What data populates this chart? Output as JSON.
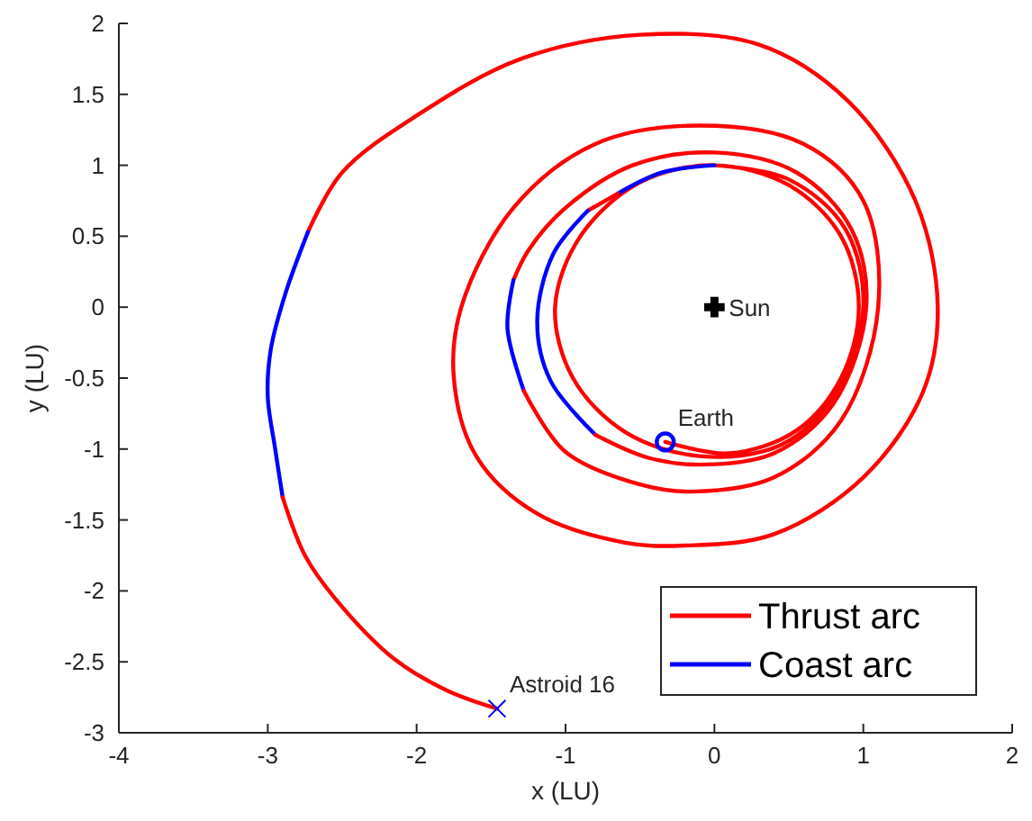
{
  "chart_data": {
    "type": "line",
    "xlabel": "x (LU)",
    "ylabel": "y (LU)",
    "xlim": [
      -4,
      2
    ],
    "xticks": [
      -4,
      -3,
      -2,
      -1,
      0,
      1,
      2
    ],
    "ylim": [
      -3,
      2
    ],
    "yticks": [
      -3,
      -2.5,
      -2,
      -1.5,
      -1,
      -0.5,
      0,
      0.5,
      1,
      1.5,
      2
    ],
    "grid": false,
    "legend": "bottom right",
    "line_style": "solid",
    "series": [
      {
        "name": "Thrust arc",
        "color": "#ff0000",
        "x": [
          -0.33,
          0.1,
          0.55,
          0.85,
          0.97,
          0.85,
          0.5,
          0.0,
          -0.5,
          -0.9,
          -1.07,
          -0.95,
          -0.6,
          -0.1,
          0.45,
          0.82,
          1.0,
          0.88,
          0.5,
          0.0
        ],
        "values": [
          -0.95,
          -1.03,
          -0.87,
          -0.5,
          0.0,
          0.5,
          0.86,
          1.0,
          0.88,
          0.5,
          0.0,
          -0.5,
          -0.88,
          -1.05,
          -0.97,
          -0.6,
          0.0,
          0.55,
          0.9,
          1.0
        ]
      },
      {
        "name": "Coast arc",
        "color": "#0000ff",
        "x": [
          0.0,
          -0.35,
          -0.65
        ],
        "values": [
          1.0,
          0.95,
          0.8
        ]
      },
      {
        "color": "#ff0000",
        "x": [
          -0.65,
          -0.85
        ],
        "values": [
          0.8,
          0.68
        ]
      },
      {
        "color": "#0000ff",
        "x": [
          -0.85,
          -1.08,
          -1.19,
          -1.1,
          -0.8
        ],
        "values": [
          0.68,
          0.38,
          -0.1,
          -0.52,
          -0.9
        ]
      },
      {
        "color": "#ff0000",
        "x": [
          -0.8,
          -0.45,
          -0.1,
          0.4,
          0.8,
          1.02,
          0.92,
          0.55,
          0.0,
          -0.55,
          -1.0,
          -1.25,
          -1.35
        ],
        "values": [
          -0.9,
          -1.06,
          -1.11,
          -1.03,
          -0.68,
          0.0,
          0.55,
          0.95,
          1.09,
          1.0,
          0.7,
          0.4,
          0.19
        ]
      },
      {
        "color": "#0000ff",
        "x": [
          -1.35,
          -1.39,
          -1.28
        ],
        "values": [
          0.19,
          -0.15,
          -0.59
        ]
      },
      {
        "color": "#ff0000",
        "x": [
          -1.28,
          -1.0,
          -0.5,
          -0.15,
          0.4,
          0.85,
          1.1,
          1.0,
          0.6,
          -0.1,
          -0.8,
          -1.35,
          -1.7,
          -1.75,
          -1.6,
          -1.2,
          -0.6,
          -0.2,
          0.4,
          1.0,
          1.4,
          1.5,
          1.35,
          0.9,
          0.3,
          -0.5,
          -1.3,
          -2.0,
          -2.5,
          -2.73
        ],
        "values": [
          -0.59,
          -1.02,
          -1.25,
          -1.3,
          -1.2,
          -0.8,
          0.0,
          0.75,
          1.15,
          1.28,
          1.15,
          0.7,
          0.0,
          -0.5,
          -1.05,
          -1.45,
          -1.66,
          -1.68,
          -1.6,
          -1.2,
          -0.6,
          0.0,
          0.75,
          1.45,
          1.85,
          1.92,
          1.75,
          1.35,
          0.95,
          0.53
        ]
      },
      {
        "color": "#0000ff",
        "x": [
          -2.73,
          -2.88,
          -2.98,
          -3.0,
          -2.95,
          -2.9
        ],
        "values": [
          0.53,
          0.1,
          -0.3,
          -0.63,
          -1.0,
          -1.34
        ]
      },
      {
        "color": "#ff0000",
        "x": [
          -2.9,
          -2.75,
          -2.55,
          -2.15,
          -1.8,
          -1.46
        ],
        "values": [
          -1.34,
          -1.75,
          -2.05,
          -2.48,
          -2.7,
          -2.83
        ]
      },
      {
        "type": "scatter",
        "marker": "cross",
        "color": "#000000",
        "x": [
          0
        ],
        "values": [
          0
        ]
      },
      {
        "type": "scatter",
        "marker": "circle",
        "color": "#0000ff",
        "x": [
          -0.33
        ],
        "values": [
          -0.95
        ]
      },
      {
        "type": "scatter",
        "marker": "x",
        "color": "#0000ff",
        "x": [
          -1.46
        ],
        "values": [
          -2.83
        ]
      }
    ],
    "annotations": [
      {
        "text": "Sun",
        "x": 0,
        "y": 0
      },
      {
        "text": "Earth",
        "x": -0.33,
        "y": -0.95
      },
      {
        "text": "Astroid 16",
        "x": -1.46,
        "y": -2.83
      }
    ]
  }
}
